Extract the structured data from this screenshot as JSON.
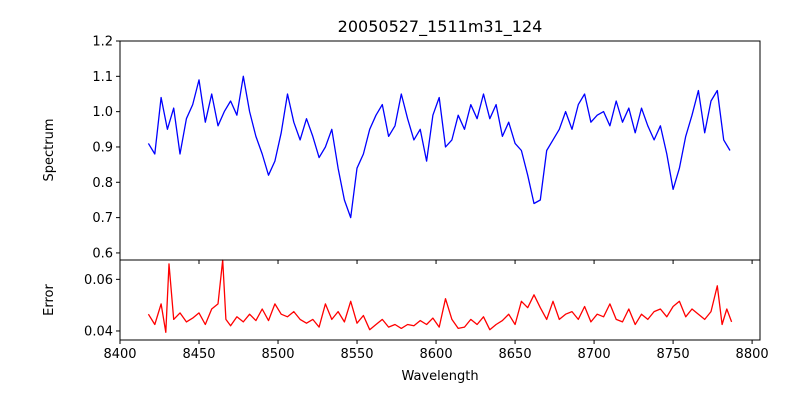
{
  "chart_data": [
    {
      "type": "line",
      "title": "20050527_1511m31_124",
      "xlabel": "",
      "ylabel": "Spectrum",
      "xlim": [
        8400,
        8805
      ],
      "ylim": [
        0.58,
        1.2
      ],
      "x_ticks": [
        8400,
        8450,
        8500,
        8550,
        8600,
        8650,
        8700,
        8750,
        8800
      ],
      "x_tick_labels_shown": false,
      "y_ticks": [
        0.6,
        0.7,
        0.8,
        0.9,
        1.0,
        1.1,
        1.2
      ],
      "y_tick_labels": [
        "0.6",
        "0.7",
        "0.8",
        "0.9",
        "1.0",
        "1.1",
        "1.2"
      ],
      "grid": false,
      "color": "#0000ff",
      "series": [
        {
          "x": [
            8418,
            8422,
            8426,
            8430,
            8434,
            8438,
            8442,
            8446,
            8450,
            8454,
            8458,
            8462,
            8466,
            8470,
            8474,
            8478,
            8482,
            8486,
            8490,
            8494,
            8498,
            8502,
            8506,
            8510,
            8514,
            8518,
            8522,
            8526,
            8530,
            8534,
            8538,
            8542,
            8546,
            8550,
            8554,
            8558,
            8562,
            8566,
            8570,
            8574,
            8578,
            8582,
            8586,
            8590,
            8594,
            8598,
            8602,
            8606,
            8610,
            8614,
            8618,
            8622,
            8626,
            8630,
            8634,
            8638,
            8642,
            8646,
            8650,
            8654,
            8658,
            8662,
            8666,
            8670,
            8674,
            8678,
            8682,
            8686,
            8690,
            8694,
            8698,
            8702,
            8706,
            8710,
            8714,
            8718,
            8722,
            8726,
            8730,
            8734,
            8738,
            8742,
            8746,
            8750,
            8754,
            8758,
            8762,
            8766,
            8770,
            8774,
            8778,
            8782,
            8786
          ],
          "values": [
            0.91,
            0.88,
            1.04,
            0.95,
            1.01,
            0.88,
            0.98,
            1.02,
            1.09,
            0.97,
            1.05,
            0.96,
            1.0,
            1.03,
            0.99,
            1.1,
            1.0,
            0.93,
            0.88,
            0.82,
            0.86,
            0.94,
            1.05,
            0.97,
            0.92,
            0.98,
            0.93,
            0.87,
            0.9,
            0.95,
            0.84,
            0.75,
            0.7,
            0.84,
            0.88,
            0.95,
            0.99,
            1.02,
            0.93,
            0.96,
            1.05,
            0.98,
            0.92,
            0.95,
            0.86,
            0.99,
            1.04,
            0.9,
            0.92,
            0.99,
            0.95,
            1.02,
            0.98,
            1.05,
            0.98,
            1.02,
            0.93,
            0.97,
            0.91,
            0.89,
            0.82,
            0.74,
            0.75,
            0.89,
            0.92,
            0.95,
            1.0,
            0.95,
            1.02,
            1.05,
            0.97,
            0.99,
            1.0,
            0.96,
            1.03,
            0.97,
            1.01,
            0.94,
            1.01,
            0.96,
            0.92,
            0.96,
            0.88,
            0.78,
            0.84,
            0.93,
            0.99,
            1.06,
            0.94,
            1.03,
            1.06,
            0.92,
            0.89
          ]
        }
      ]
    },
    {
      "type": "line",
      "title": "",
      "xlabel": "Wavelength",
      "ylabel": "Error",
      "xlim": [
        8400,
        8805
      ],
      "ylim": [
        0.0365,
        0.0675
      ],
      "x_ticks": [
        8400,
        8450,
        8500,
        8550,
        8600,
        8650,
        8700,
        8750,
        8800
      ],
      "x_tick_labels": [
        "8400",
        "8450",
        "8500",
        "8550",
        "8600",
        "8650",
        "8700",
        "8750",
        "8800"
      ],
      "y_ticks": [
        0.04,
        0.06
      ],
      "y_tick_labels": [
        "0.04",
        "0.06"
      ],
      "grid": false,
      "color": "#ff0000",
      "series": [
        {
          "x": [
            8418,
            8422,
            8426,
            8429,
            8431,
            8434,
            8438,
            8442,
            8446,
            8450,
            8454,
            8458,
            8462,
            8465,
            8467,
            8470,
            8474,
            8478,
            8482,
            8486,
            8490,
            8494,
            8498,
            8502,
            8506,
            8510,
            8514,
            8518,
            8522,
            8526,
            8530,
            8534,
            8538,
            8542,
            8546,
            8550,
            8554,
            8558,
            8562,
            8566,
            8570,
            8574,
            8578,
            8582,
            8586,
            8590,
            8594,
            8598,
            8602,
            8606,
            8610,
            8614,
            8618,
            8622,
            8626,
            8630,
            8634,
            8638,
            8642,
            8646,
            8650,
            8654,
            8658,
            8662,
            8666,
            8670,
            8674,
            8678,
            8682,
            8686,
            8690,
            8694,
            8698,
            8702,
            8706,
            8710,
            8714,
            8718,
            8722,
            8726,
            8730,
            8734,
            8738,
            8742,
            8746,
            8750,
            8754,
            8758,
            8762,
            8766,
            8770,
            8774,
            8778,
            8781,
            8784,
            8787
          ],
          "values": [
            0.0465,
            0.0425,
            0.0505,
            0.0395,
            0.066,
            0.0445,
            0.047,
            0.0435,
            0.045,
            0.047,
            0.0425,
            0.0485,
            0.0505,
            0.0675,
            0.0445,
            0.042,
            0.0455,
            0.0435,
            0.0465,
            0.044,
            0.0485,
            0.044,
            0.0505,
            0.0465,
            0.0455,
            0.0475,
            0.0445,
            0.043,
            0.0445,
            0.0415,
            0.0505,
            0.0445,
            0.0475,
            0.0435,
            0.0515,
            0.043,
            0.046,
            0.0405,
            0.0425,
            0.0445,
            0.0415,
            0.0425,
            0.041,
            0.0425,
            0.042,
            0.044,
            0.0425,
            0.045,
            0.0415,
            0.0525,
            0.0445,
            0.041,
            0.0415,
            0.0445,
            0.0425,
            0.0455,
            0.0405,
            0.0425,
            0.044,
            0.0465,
            0.0425,
            0.0515,
            0.049,
            0.054,
            0.049,
            0.0445,
            0.0515,
            0.0445,
            0.0465,
            0.0475,
            0.0445,
            0.0495,
            0.0435,
            0.0465,
            0.0455,
            0.0505,
            0.0445,
            0.0435,
            0.0485,
            0.0425,
            0.0465,
            0.0445,
            0.0475,
            0.0485,
            0.0455,
            0.0495,
            0.0515,
            0.0455,
            0.0485,
            0.0465,
            0.0445,
            0.0475,
            0.0575,
            0.0425,
            0.0485,
            0.0435
          ]
        }
      ]
    }
  ]
}
